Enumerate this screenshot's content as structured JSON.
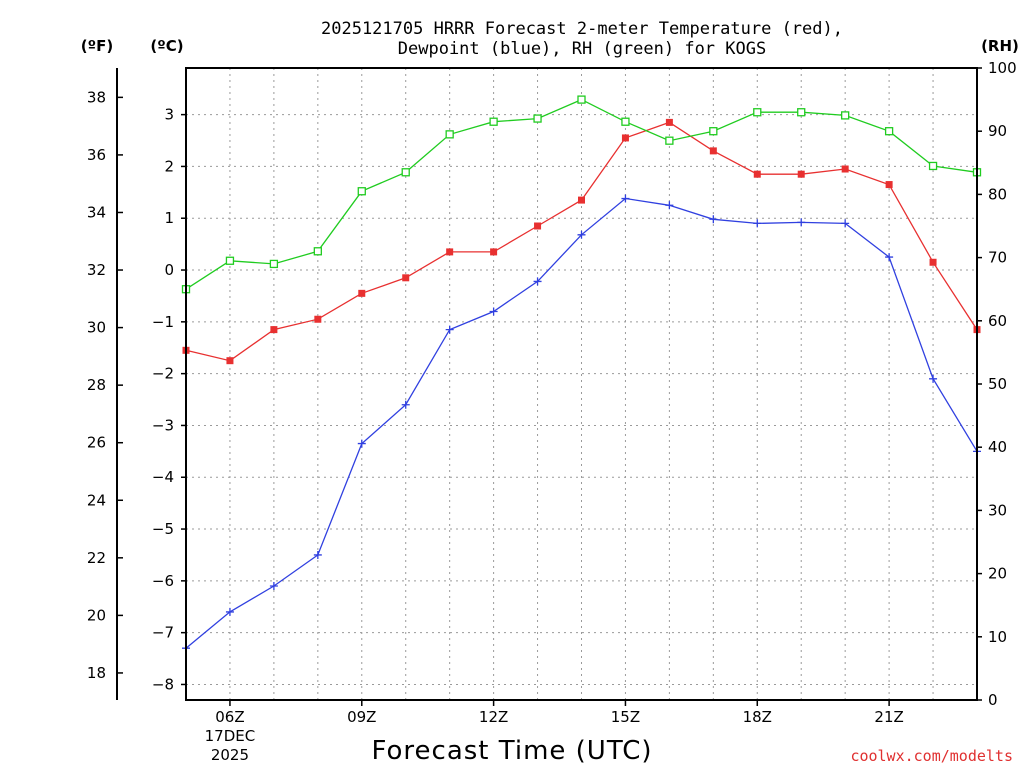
{
  "chart_data": {
    "type": "line",
    "title_line1": "2025121705 HRRR Forecast 2-meter Temperature (red),",
    "title_line2": "Dewpoint (blue), RH (green) for KOGS",
    "xlabel": "Forecast Time (UTC)",
    "credit": "coolwx.com/modelts",
    "units": {
      "fahrenheit": "(ºF)",
      "celsius": "(ºC)",
      "rh": "(RH)"
    },
    "x_hours": [
      5,
      6,
      7,
      8,
      9,
      10,
      11,
      12,
      13,
      14,
      15,
      16,
      17,
      18,
      19,
      20,
      21,
      22,
      23
    ],
    "x_range": [
      5,
      23
    ],
    "x_ticks": [
      {
        "hour": 6,
        "label": "06Z",
        "sub1": "17DEC",
        "sub2": "2025"
      },
      {
        "hour": 9,
        "label": "09Z"
      },
      {
        "hour": 12,
        "label": "12Z"
      },
      {
        "hour": 15,
        "label": "15Z"
      },
      {
        "hour": 18,
        "label": "18Z"
      },
      {
        "hour": 21,
        "label": "21Z"
      }
    ],
    "celsius_axis": {
      "range": [
        -8.3,
        3.9
      ],
      "ticks": [
        "3",
        "2",
        "1",
        "0",
        "−1",
        "−2",
        "−3",
        "−4",
        "−5",
        "−6",
        "−7",
        "−8"
      ],
      "values": [
        3,
        2,
        1,
        0,
        -1,
        -2,
        -3,
        -4,
        -5,
        -6,
        -7,
        -8
      ]
    },
    "fahrenheit_axis": {
      "ticks": [
        "38",
        "36",
        "34",
        "32",
        "30",
        "28",
        "26",
        "24",
        "22",
        "20",
        "18"
      ],
      "values": [
        38,
        36,
        34,
        32,
        30,
        28,
        26,
        24,
        22,
        20,
        18
      ]
    },
    "rh_axis": {
      "range": [
        0,
        100
      ],
      "ticks": [
        "100",
        "90",
        "80",
        "70",
        "60",
        "50",
        "40",
        "30",
        "20",
        "10",
        "0"
      ],
      "values": [
        100,
        90,
        80,
        70,
        60,
        50,
        40,
        30,
        20,
        10,
        0
      ]
    },
    "series": [
      {
        "name": "Temperature",
        "axis": "celsius",
        "color": "#e83030",
        "marker": "filled-square",
        "values": [
          -1.55,
          -1.75,
          -1.15,
          -0.95,
          -0.45,
          -0.15,
          0.35,
          0.35,
          0.85,
          1.35,
          2.55,
          2.85,
          2.3,
          1.85,
          1.85,
          1.95,
          1.65,
          0.15,
          -1.15
        ]
      },
      {
        "name": "Dewpoint",
        "axis": "celsius",
        "color": "#3040e0",
        "marker": "plus",
        "values": [
          -7.3,
          -6.6,
          -6.1,
          -5.5,
          -3.35,
          -2.6,
          -1.15,
          -0.8,
          -0.22,
          0.68,
          1.38,
          1.25,
          0.98,
          0.9,
          0.92,
          0.9,
          0.25,
          -2.1,
          -3.5
        ]
      },
      {
        "name": "RH",
        "axis": "rh",
        "color": "#20cc20",
        "marker": "open-square",
        "values": [
          65,
          69.5,
          69,
          71,
          80.5,
          83.5,
          89.5,
          91.5,
          92,
          95,
          91.5,
          88.5,
          90,
          93,
          93,
          92.5,
          90,
          84.5,
          83.5
        ]
      }
    ]
  }
}
